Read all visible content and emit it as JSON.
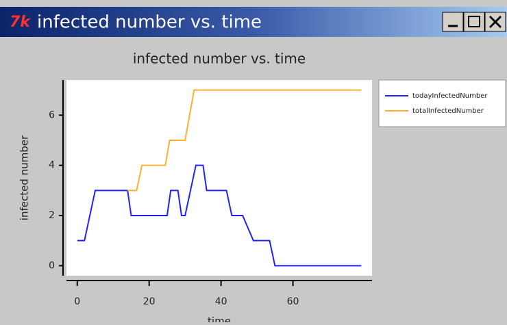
{
  "window": {
    "title": "infected number vs. time"
  },
  "chart_data": {
    "type": "line",
    "title": "infected number vs. time",
    "x_label": "time",
    "y_label": "infected number",
    "xlim": [
      -3,
      82
    ],
    "ylim": [
      -0.4,
      7.4
    ],
    "xticks": [
      0,
      20,
      40,
      60
    ],
    "yticks": [
      0,
      2,
      4,
      6
    ],
    "legend": "outside-right",
    "series": [
      {
        "name": "todayInfectedNumber",
        "color": "#2020ff",
        "x": [
          0,
          2,
          5,
          14,
          15,
          25,
          26,
          28,
          29,
          30,
          33,
          35,
          36,
          41.5,
          43,
          46,
          49,
          53.5,
          55,
          79
        ],
        "values": [
          1,
          1,
          3,
          3,
          2,
          2,
          3,
          3,
          2,
          2,
          4,
          4,
          3,
          3,
          2,
          2,
          1,
          1,
          0,
          0
        ]
      },
      {
        "name": "totalInfectedNumber",
        "color": "#ffb030",
        "x": [
          14,
          16.5,
          18,
          24.5,
          25.7,
          30,
          32.5,
          79
        ],
        "values": [
          3,
          3,
          4,
          4,
          5,
          5,
          7,
          7
        ]
      }
    ]
  }
}
